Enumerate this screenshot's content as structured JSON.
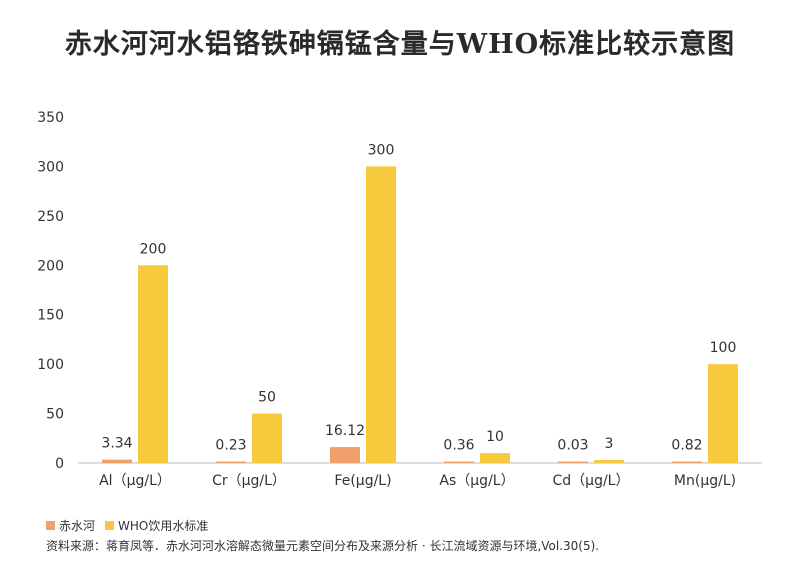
{
  "title": "赤水河河水铝铬铁砷镉锰含量与WHO标准比较示意图",
  "source": "资料来源：蒋育凤等．赤水河河水溶解态微量元素空间分布及来源分析 · 长江流域资源与环境,Vol.30(5).",
  "colors": {
    "series1": "#F0A06A",
    "series2": "#F7C93C",
    "axis": "#bbbbbb"
  },
  "chart_data": {
    "type": "bar",
    "title": "赤水河河水铝铬铁砷镉锰含量与WHO标准比较示意图",
    "categories": [
      "Al（μg/L）",
      "Cr（μg/L）",
      "Fe(μg/L)",
      "As（μg/L）",
      "Cd（μg/L）",
      "Mn(μg/L)"
    ],
    "series": [
      {
        "name": "赤水河",
        "values": [
          3.34,
          0.23,
          16.12,
          0.36,
          0.03,
          0.82
        ],
        "labels": [
          "3.34",
          "0.23",
          "16.12",
          "0.36",
          "0.03",
          "0.82"
        ]
      },
      {
        "name": "WHO饮用水标准",
        "values": [
          200,
          50,
          300,
          10,
          3,
          100
        ],
        "labels": [
          "200",
          "50",
          "300",
          "10",
          "3",
          "100"
        ]
      }
    ],
    "yticks": [
      "0",
      "50",
      "100",
      "150",
      "200",
      "250",
      "300",
      "350"
    ],
    "ylim": [
      0,
      350
    ],
    "grid": false,
    "legend_position": "bottom-left"
  }
}
